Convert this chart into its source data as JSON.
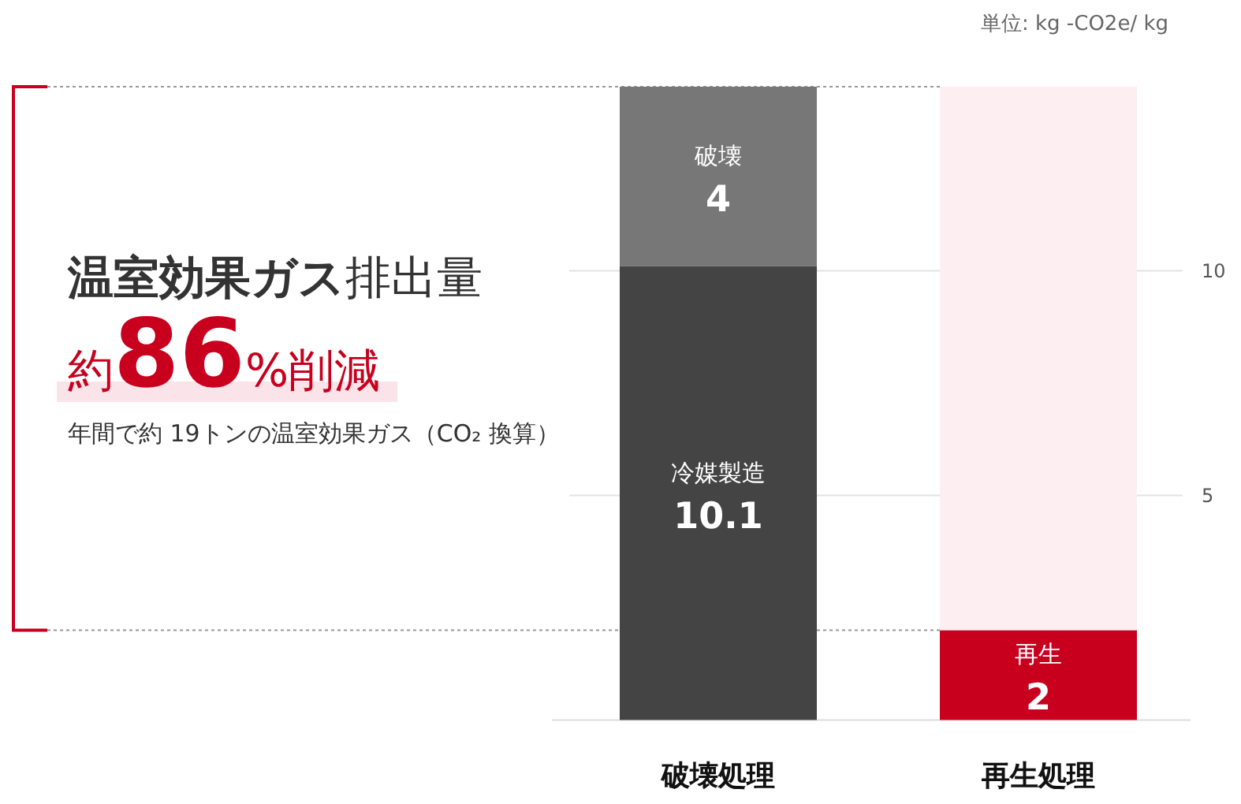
{
  "chart_data": {
    "type": "bar",
    "stacked": true,
    "title": "**温室効果ガス**排出量",
    "ylabel": "単位: kg -CO2e/ kg",
    "annotations": [
      "約**86**%削減",
      "年間で約 19トンの温室効果ガス（CO₂ 換算）"
    ],
    "categories": [
      "破壊処理",
      "再生処理"
    ],
    "series": [
      {
        "name": "冷媒製造",
        "color": "#444444",
        "values": [
          10.1,
          null
        ],
        "value_labels": [
          "10.1",
          null
        ]
      },
      {
        "name": "破壊",
        "color": "#777777",
        "values": [
          4,
          null
        ],
        "value_labels": [
          "4",
          null
        ]
      },
      {
        "name": "再生",
        "color": "#c8001e",
        "values": [
          null,
          2
        ],
        "value_labels": [
          null,
          "2"
        ]
      },
      {
        "color": "#fdeef1",
        "values": [
          null,
          12.1
        ]
      }
    ],
    "ylim": [
      0,
      14.1
    ],
    "yticks": [
      5,
      10
    ],
    "grid": "y",
    "ref_lines": [
      {
        "axis": "y",
        "value": 14.1,
        "line_style": "dotted",
        "color": "#999999"
      },
      {
        "axis": "y",
        "value": 2,
        "line_style": "dotted",
        "color": "#999999"
      }
    ]
  }
}
